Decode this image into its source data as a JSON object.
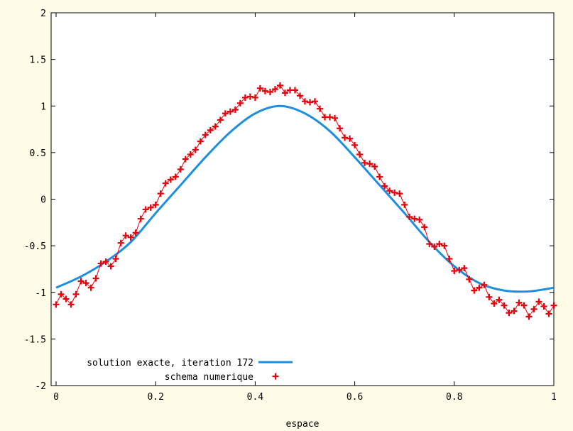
{
  "chart_data": {
    "type": "line",
    "xlabel": "espace",
    "ylabel": "",
    "xlim": [
      -0.01,
      1.0
    ],
    "ylim": [
      -2,
      2
    ],
    "x_ticks": [
      {
        "v": 0,
        "label": "0"
      },
      {
        "v": 0.2,
        "label": "0.2"
      },
      {
        "v": 0.4,
        "label": "0.4"
      },
      {
        "v": 0.6,
        "label": "0.6"
      },
      {
        "v": 0.8,
        "label": "0.8"
      },
      {
        "v": 1,
        "label": "1"
      }
    ],
    "y_ticks": [
      {
        "v": -2,
        "label": "-2"
      },
      {
        "v": -1.5,
        "label": "-1.5"
      },
      {
        "v": -1,
        "label": "-1"
      },
      {
        "v": -0.5,
        "label": "-0.5"
      },
      {
        "v": 0,
        "label": "0"
      },
      {
        "v": 0.5,
        "label": "0.5"
      },
      {
        "v": 1,
        "label": "1"
      },
      {
        "v": 1.5,
        "label": "1.5"
      },
      {
        "v": 2,
        "label": "2"
      }
    ],
    "grid": false,
    "legend_position": "bottom-left",
    "background_color": "#fffde8",
    "series": [
      {
        "name": "solution exacte, iteration 172",
        "style": "line",
        "color": "#1e8fe0",
        "x": [
          0,
          0.05,
          0.1,
          0.15,
          0.2,
          0.25,
          0.3,
          0.35,
          0.4,
          0.45,
          0.5,
          0.55,
          0.6,
          0.65,
          0.7,
          0.75,
          0.8,
          0.85,
          0.9,
          0.95,
          1.0
        ],
        "y": [
          -0.95,
          -0.83,
          -0.67,
          -0.46,
          -0.15,
          0.15,
          0.45,
          0.72,
          0.92,
          1.0,
          0.92,
          0.73,
          0.45,
          0.15,
          -0.15,
          -0.46,
          -0.72,
          -0.9,
          -0.98,
          -0.99,
          -0.95
        ]
      },
      {
        "name": "schema numerique",
        "style": "points",
        "color": "#e8000b",
        "x": [
          0,
          0.01,
          0.02,
          0.03,
          0.04,
          0.05,
          0.06,
          0.07,
          0.08,
          0.09,
          0.1,
          0.11,
          0.12,
          0.13,
          0.14,
          0.15,
          0.16,
          0.17,
          0.18,
          0.19,
          0.2,
          0.21,
          0.22,
          0.23,
          0.24,
          0.25,
          0.26,
          0.27,
          0.28,
          0.29,
          0.3,
          0.31,
          0.32,
          0.33,
          0.34,
          0.35,
          0.36,
          0.37,
          0.38,
          0.39,
          0.4,
          0.41,
          0.42,
          0.43,
          0.44,
          0.45,
          0.46,
          0.47,
          0.48,
          0.49,
          0.5,
          0.51,
          0.52,
          0.53,
          0.54,
          0.55,
          0.56,
          0.57,
          0.58,
          0.59,
          0.6,
          0.61,
          0.62,
          0.63,
          0.64,
          0.65,
          0.66,
          0.67,
          0.68,
          0.69,
          0.7,
          0.71,
          0.72,
          0.73,
          0.74,
          0.75,
          0.76,
          0.77,
          0.78,
          0.79,
          0.8,
          0.81,
          0.82,
          0.83,
          0.84,
          0.85,
          0.86,
          0.87,
          0.88,
          0.89,
          0.9,
          0.91,
          0.92,
          0.93,
          0.94,
          0.95,
          0.96,
          0.97,
          0.98,
          0.99,
          1.0
        ],
        "y": [
          -1.13,
          -1.02,
          -1.07,
          -1.13,
          -1.02,
          -0.88,
          -0.9,
          -0.95,
          -0.85,
          -0.69,
          -0.67,
          -0.72,
          -0.64,
          -0.47,
          -0.39,
          -0.41,
          -0.36,
          -0.21,
          -0.11,
          -0.09,
          -0.06,
          0.06,
          0.17,
          0.21,
          0.24,
          0.32,
          0.43,
          0.48,
          0.53,
          0.62,
          0.69,
          0.74,
          0.78,
          0.85,
          0.92,
          0.94,
          0.96,
          1.03,
          1.09,
          1.1,
          1.09,
          1.19,
          1.16,
          1.15,
          1.18,
          1.22,
          1.14,
          1.17,
          1.17,
          1.11,
          1.05,
          1.04,
          1.05,
          0.97,
          0.88,
          0.88,
          0.87,
          0.76,
          0.66,
          0.65,
          0.58,
          0.48,
          0.39,
          0.38,
          0.35,
          0.24,
          0.14,
          0.09,
          0.07,
          0.06,
          -0.06,
          -0.19,
          -0.21,
          -0.22,
          -0.3,
          -0.48,
          -0.51,
          -0.48,
          -0.5,
          -0.64,
          -0.77,
          -0.76,
          -0.74,
          -0.86,
          -0.98,
          -0.95,
          -0.92,
          -1.05,
          -1.12,
          -1.08,
          -1.14,
          -1.22,
          -1.2,
          -1.11,
          -1.14,
          -1.26,
          -1.18,
          -1.1,
          -1.15,
          -1.23,
          -1.14
        ]
      }
    ]
  }
}
